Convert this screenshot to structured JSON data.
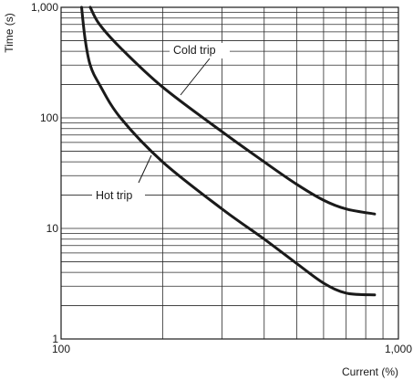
{
  "chart_data": {
    "type": "line",
    "xlabel": "Current (%)",
    "ylabel": "Time (s)",
    "xscale": "log",
    "yscale": "log",
    "xlim": [
      100,
      1000
    ],
    "ylim": [
      1,
      1000
    ],
    "grid": true,
    "x_tick_labels": [
      {
        "value": 100,
        "label": "100"
      },
      {
        "value": 1000,
        "label": "1,000"
      }
    ],
    "y_tick_labels": [
      {
        "value": 1,
        "label": "1"
      },
      {
        "value": 10,
        "label": "10"
      },
      {
        "value": 100,
        "label": "100"
      },
      {
        "value": 1000,
        "label": "1,000"
      }
    ],
    "series": [
      {
        "name": "Cold trip",
        "points": [
          [
            122,
            1000
          ],
          [
            130,
            700
          ],
          [
            150,
            430
          ],
          [
            200,
            190
          ],
          [
            300,
            75
          ],
          [
            400,
            40
          ],
          [
            500,
            25
          ],
          [
            600,
            18
          ],
          [
            700,
            15
          ],
          [
            850,
            13.5
          ]
        ]
      },
      {
        "name": "Hot trip",
        "points": [
          [
            115,
            1000
          ],
          [
            118,
            500
          ],
          [
            122,
            300
          ],
          [
            130,
            200
          ],
          [
            150,
            100
          ],
          [
            200,
            40
          ],
          [
            300,
            15
          ],
          [
            400,
            8
          ],
          [
            500,
            4.8
          ],
          [
            600,
            3.2
          ],
          [
            700,
            2.6
          ],
          [
            850,
            2.5
          ]
        ]
      }
    ],
    "annotations": [
      {
        "text": "Cold trip",
        "series": "Cold trip"
      },
      {
        "text": "Hot trip",
        "series": "Hot trip"
      }
    ]
  }
}
